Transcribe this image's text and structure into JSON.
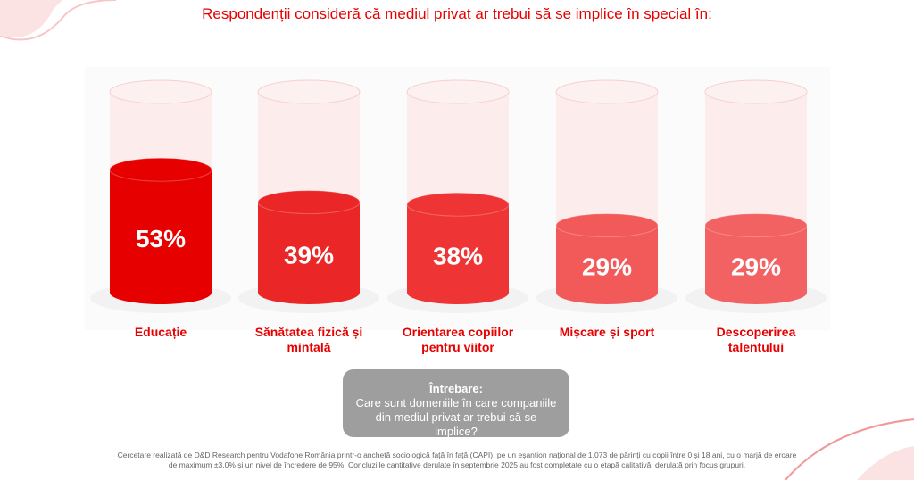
{
  "chart_data": {
    "type": "cylinder",
    "title": "Respondenții consideră că mediul privat ar trebui să se implice în special în:",
    "categories": [
      "Educație",
      "Sănătatea fizică și mintală",
      "Orientarea copiilor pentru viitor",
      "Mișcare și sport",
      "Descoperirea talentului"
    ],
    "values": [
      53,
      39,
      38,
      29,
      29
    ],
    "value_labels": [
      "53%",
      "39%",
      "38%",
      "29%",
      "29%"
    ],
    "colors": [
      "#e60000",
      "#eb2626",
      "#ee3434",
      "#f25a5a",
      "#f36262"
    ],
    "question": {
      "label": "Întrebare:",
      "text": "Care sunt domeniile în care companiile din mediul privat ar trebui să se implice?"
    },
    "footnote": "Cercetare realizată de D&D Research pentru Vodafone România printr-o anchetă sociologică față în față (CAPI), pe un eșantion național de 1.073 de părinți cu copii între 0 și 18 ani, cu o marjă de eroare de maximum ±3,0% și un nivel de încredere de 95%. Concluziile cantitative derulate în septembrie 2025 au fost completate cu o etapă calitativă, derulată prin focus grupuri."
  }
}
